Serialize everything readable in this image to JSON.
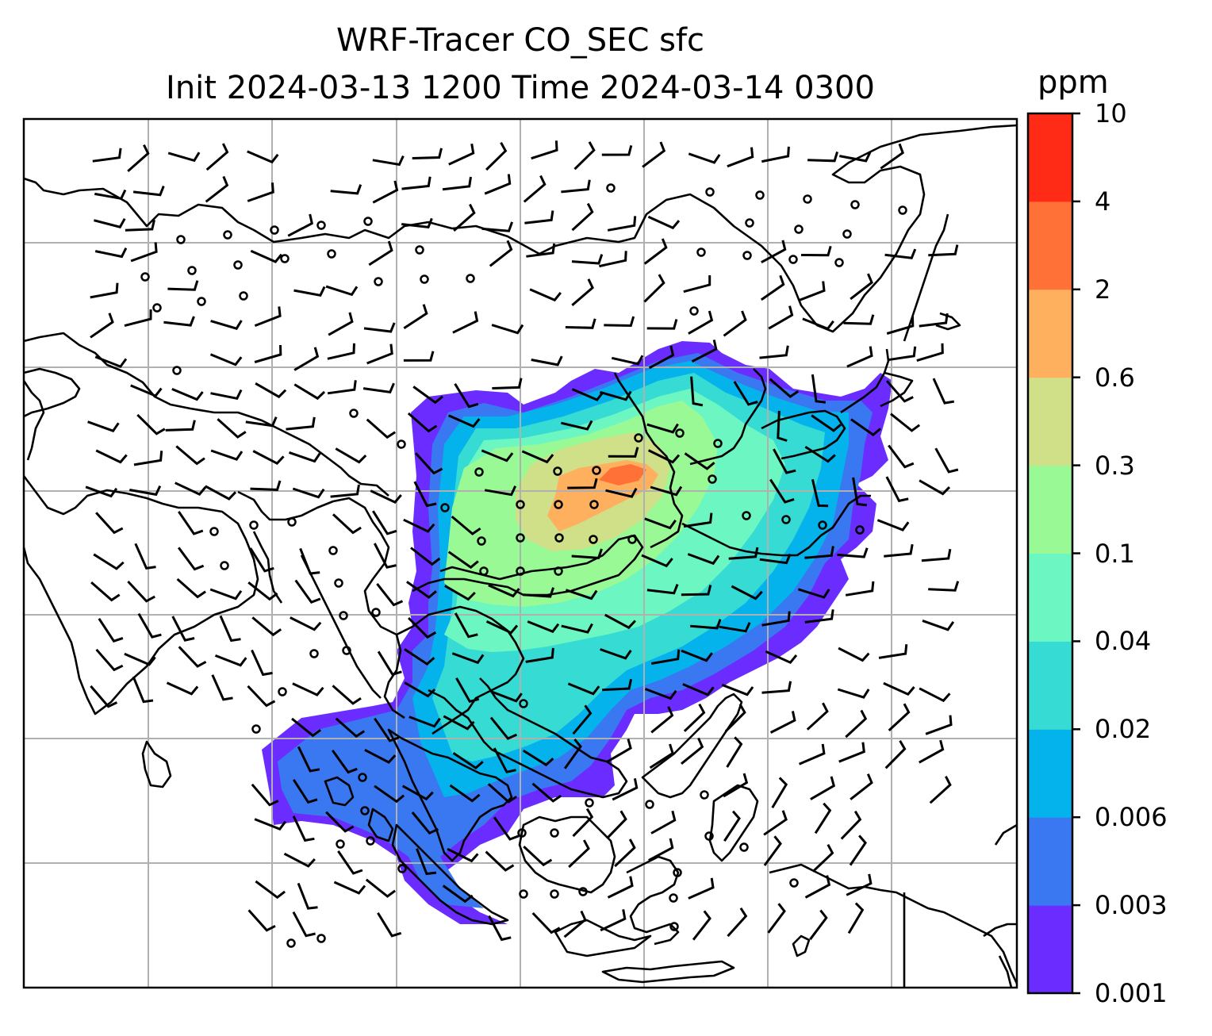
{
  "title": {
    "line1": "WRF-Tracer CO_SEC sfc",
    "line2": "Init 2024-03-13 1200 Time 2024-03-14 0300"
  },
  "colorbar": {
    "unit": "ppm",
    "levels": [
      "0.001",
      "0.003",
      "0.006",
      "0.02",
      "0.04",
      "0.1",
      "0.3",
      "0.6",
      "2",
      "4",
      "10"
    ],
    "colors": [
      "#6a2cff",
      "#3a78f2",
      "#05b3ec",
      "#36dcd4",
      "#6cf7c2",
      "#99f995",
      "#cfe089",
      "#ffb05f",
      "#ff7136",
      "#ff2b16"
    ]
  },
  "map": {
    "gridlines": true,
    "grid_color": "#b0b0b0",
    "coastline_color": "#000000",
    "wind_barb_color": "#000000",
    "calm_marker": "circle"
  }
}
